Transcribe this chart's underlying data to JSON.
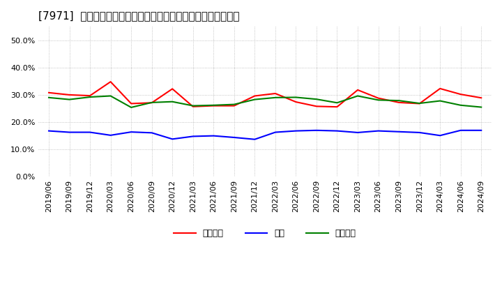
{
  "title": "[7971]  売上債権、在庫、買入債務の総資産に対する比率の推移",
  "x_labels": [
    "2019/06",
    "2019/09",
    "2019/12",
    "2020/03",
    "2020/06",
    "2020/09",
    "2020/12",
    "2021/03",
    "2021/06",
    "2021/09",
    "2021/12",
    "2022/03",
    "2022/06",
    "2022/09",
    "2022/12",
    "2023/03",
    "2023/06",
    "2023/09",
    "2023/12",
    "2024/03",
    "2024/06",
    "2024/09"
  ],
  "receivables": [
    0.308,
    0.3,
    0.297,
    0.348,
    0.268,
    0.271,
    0.322,
    0.257,
    0.26,
    0.26,
    0.296,
    0.305,
    0.274,
    0.258,
    0.256,
    0.318,
    0.288,
    0.272,
    0.268,
    0.323,
    0.302,
    0.289
  ],
  "inventory": [
    0.168,
    0.163,
    0.163,
    0.152,
    0.164,
    0.161,
    0.138,
    0.148,
    0.15,
    0.144,
    0.137,
    0.163,
    0.168,
    0.17,
    0.168,
    0.162,
    0.168,
    0.165,
    0.162,
    0.151,
    0.17,
    0.17
  ],
  "payables": [
    0.29,
    0.283,
    0.292,
    0.296,
    0.254,
    0.272,
    0.275,
    0.26,
    0.262,
    0.265,
    0.283,
    0.29,
    0.291,
    0.284,
    0.271,
    0.296,
    0.281,
    0.279,
    0.269,
    0.278,
    0.262,
    0.255
  ],
  "receivables_color": "#ff0000",
  "inventory_color": "#0000ff",
  "payables_color": "#008000",
  "legend_labels": [
    "売上債権",
    "在庫",
    "買入債務"
  ],
  "ylim": [
    0.0,
    0.55
  ],
  "yticks": [
    0.0,
    0.1,
    0.2,
    0.3,
    0.4,
    0.5
  ],
  "background_color": "#ffffff",
  "plot_bg_color": "#ffffff",
  "grid_color": "#aaaaaa",
  "title_fontsize": 11,
  "tick_fontsize": 8,
  "legend_fontsize": 9
}
